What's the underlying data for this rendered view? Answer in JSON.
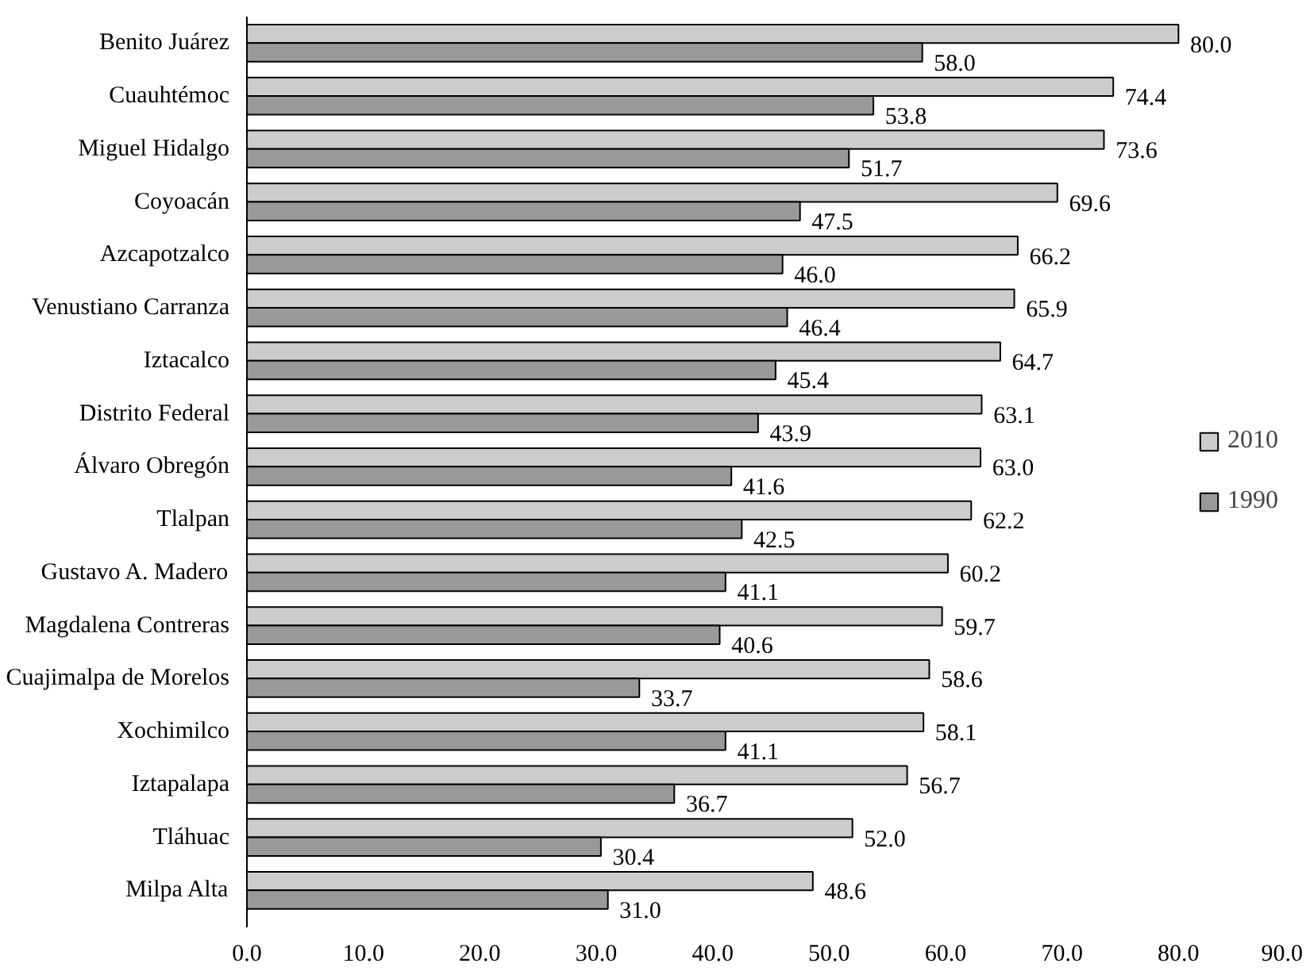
{
  "chart_data": {
    "type": "bar",
    "orientation": "horizontal",
    "categories": [
      "Benito Juárez",
      "Cuauhtémoc",
      "Miguel Hidalgo",
      "Coyoacán",
      "Azcapotzalco",
      "Venustiano Carranza",
      "Iztacalco",
      "Distrito Federal",
      "Álvaro Obregón",
      "Tlalpan",
      "Gustavo A. Madero",
      "Magdalena Contreras",
      "Cuajimalpa de Morelos",
      "Xochimilco",
      "Iztapalapa",
      "Tláhuac",
      "Milpa Alta"
    ],
    "series": [
      {
        "name": "2010",
        "color": "#cccccc",
        "values": [
          80.0,
          74.4,
          73.6,
          69.6,
          66.2,
          65.9,
          64.7,
          63.1,
          63.0,
          62.2,
          60.2,
          59.7,
          58.6,
          58.1,
          56.7,
          52.0,
          48.6
        ],
        "value_labels": [
          "80.0",
          "74.4",
          "73.6",
          "69.6",
          "66.2",
          "65.9",
          "64.7",
          "63.1",
          "63.0",
          "62.2",
          "60.2",
          "59.7",
          "58.6",
          "58.1",
          "56.7",
          "52.0",
          "48.6"
        ]
      },
      {
        "name": "1990",
        "color": "#999999",
        "values": [
          58.0,
          53.8,
          51.7,
          47.5,
          46.0,
          46.4,
          45.4,
          43.9,
          41.6,
          42.5,
          41.1,
          40.6,
          33.7,
          41.1,
          36.7,
          30.4,
          31.0
        ],
        "value_labels": [
          "58.0",
          "53.8",
          "51.7",
          "47.5",
          "46.0",
          "46.4",
          "45.4",
          "43.9",
          "41.6",
          "42.5",
          "41.1",
          "40.6",
          "33.7",
          "41.1",
          "36.7",
          "30.4",
          "31.0"
        ]
      }
    ],
    "xlim": [
      0,
      90
    ],
    "xticks": [
      {
        "value": 0,
        "label": "0.0"
      },
      {
        "value": 10,
        "label": "10.0"
      },
      {
        "value": 20,
        "label": "20.0"
      },
      {
        "value": 30,
        "label": "30.0"
      },
      {
        "value": 40,
        "label": "40.0"
      },
      {
        "value": 50,
        "label": "50.0"
      },
      {
        "value": 60,
        "label": "60.0"
      },
      {
        "value": 70,
        "label": "70.0"
      },
      {
        "value": 80,
        "label": "80.0"
      },
      {
        "value": 90,
        "label": "90.0"
      }
    ],
    "grid": false,
    "legend": "right"
  }
}
